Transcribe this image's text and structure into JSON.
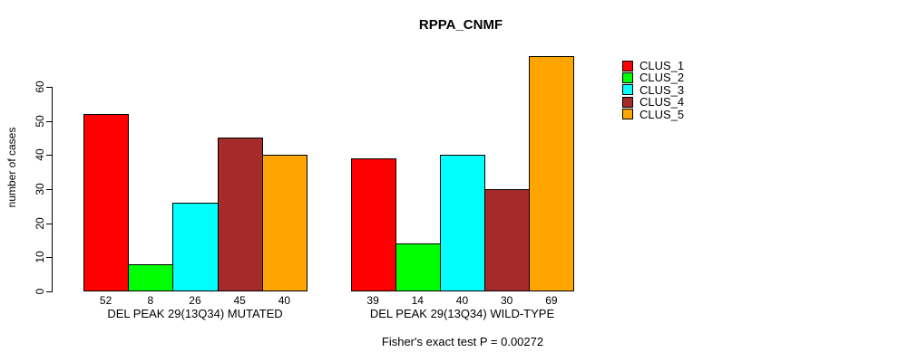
{
  "chart_data": {
    "type": "bar",
    "title": "RPPA_CNMF",
    "ylabel": "number of cases",
    "xlabel": "",
    "categories": [
      "DEL PEAK 29(13Q34) MUTATED",
      "DEL PEAK 29(13Q34) WILD-TYPE"
    ],
    "series": [
      {
        "name": "CLUS_1",
        "color": "#FF0000",
        "values": [
          52,
          39
        ]
      },
      {
        "name": "CLUS_2",
        "color": "#00FF00",
        "values": [
          8,
          14
        ]
      },
      {
        "name": "CLUS_3",
        "color": "#00FFFF",
        "values": [
          26,
          40
        ]
      },
      {
        "name": "CLUS_4",
        "color": "#A52A2A",
        "values": [
          45,
          30
        ]
      },
      {
        "name": "CLUS_5",
        "color": "#FFA500",
        "values": [
          40,
          69
        ]
      }
    ],
    "yticks": [
      0,
      10,
      20,
      30,
      40,
      50,
      60
    ],
    "ylim": [
      0,
      69
    ],
    "grid": false,
    "show_values_under_bars": true,
    "legend_position": "right",
    "annotation": "Fisher's exact test P = 0.00272"
  }
}
